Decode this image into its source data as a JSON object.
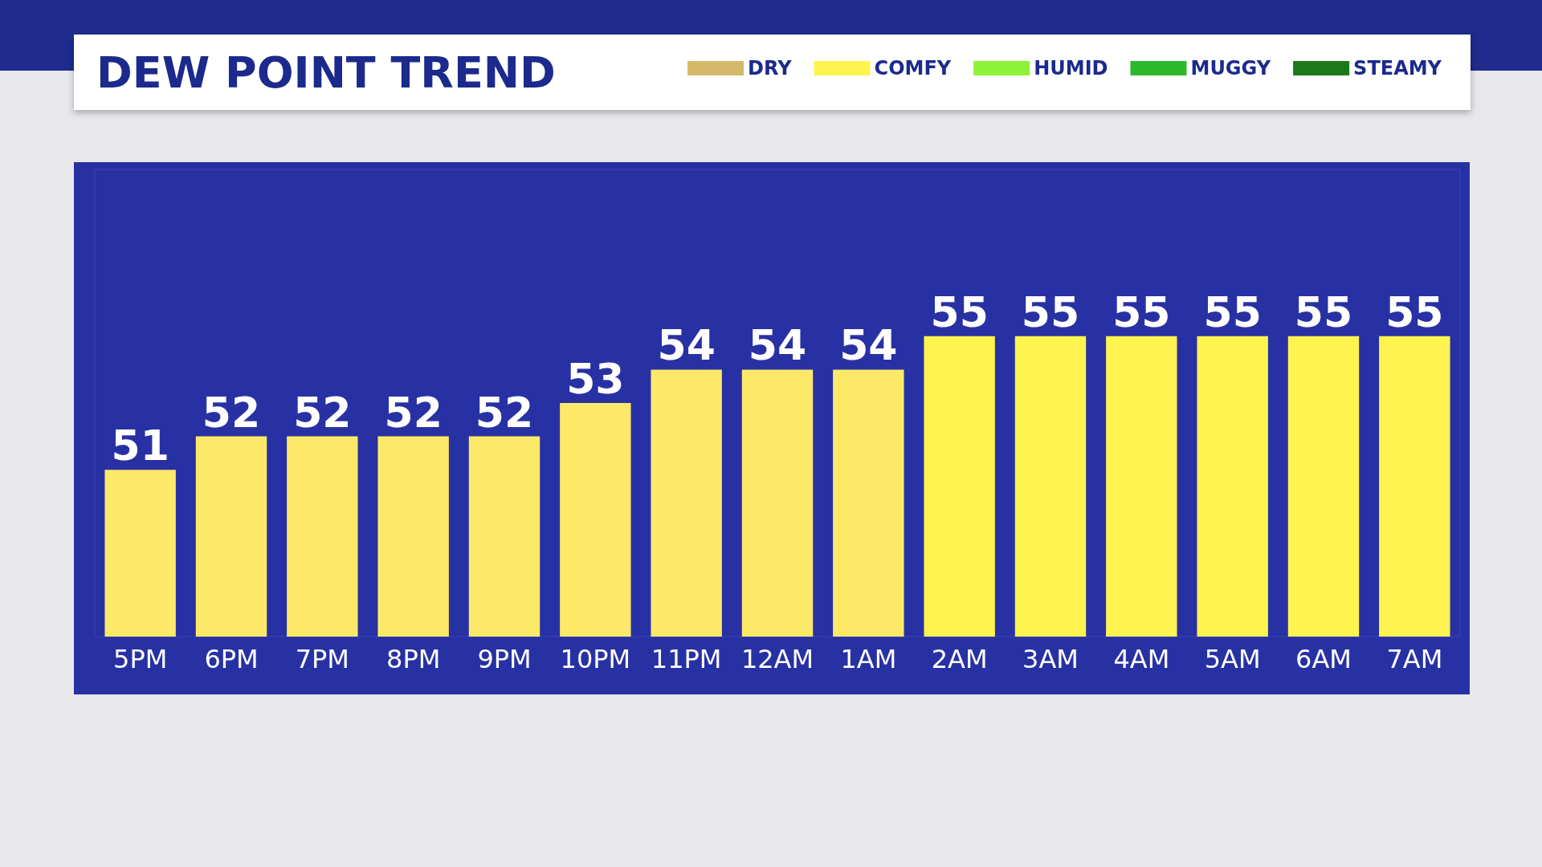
{
  "chart_data": {
    "type": "bar",
    "title": "DEW POINT TREND",
    "categories": [
      "5PM",
      "6PM",
      "7PM",
      "8PM",
      "9PM",
      "10PM",
      "11PM",
      "12AM",
      "1AM",
      "2AM",
      "3AM",
      "4AM",
      "5AM",
      "6AM",
      "7AM"
    ],
    "series": [
      {
        "name": "DRY",
        "color": "#d4b96a",
        "values": [
          null,
          null,
          null,
          null,
          null,
          null,
          null,
          null,
          null,
          null,
          null,
          null,
          null,
          null,
          null
        ]
      },
      {
        "name": "COMFY",
        "color": "#fff44f",
        "values": [
          51,
          52,
          52,
          52,
          52,
          53,
          54,
          54,
          54,
          55,
          55,
          55,
          55,
          55,
          55
        ],
        "colors": [
          "#fde968",
          "#fde968",
          "#fde968",
          "#fde968",
          "#fde968",
          "#fde968",
          "#fde968",
          "#fde968",
          "#fde968",
          "#fff44f",
          "#fff44f",
          "#fff44f",
          "#fff44f",
          "#fff44f",
          "#fff44f"
        ]
      },
      {
        "name": "HUMID",
        "color": "#8ef23a",
        "values": [
          null,
          null,
          null,
          null,
          null,
          null,
          null,
          null,
          null,
          null,
          null,
          null,
          null,
          null,
          null
        ]
      },
      {
        "name": "MUGGY",
        "color": "#2db82d",
        "values": [
          null,
          null,
          null,
          null,
          null,
          null,
          null,
          null,
          null,
          null,
          null,
          null,
          null,
          null,
          null
        ]
      },
      {
        "name": "STEAMY",
        "color": "#1a7a1a",
        "values": [
          null,
          null,
          null,
          null,
          null,
          null,
          null,
          null,
          null,
          null,
          null,
          null,
          null,
          null,
          null
        ]
      }
    ],
    "ylim": [
      46,
      60
    ],
    "data_labels": true,
    "grid": false,
    "legend": "top right"
  }
}
